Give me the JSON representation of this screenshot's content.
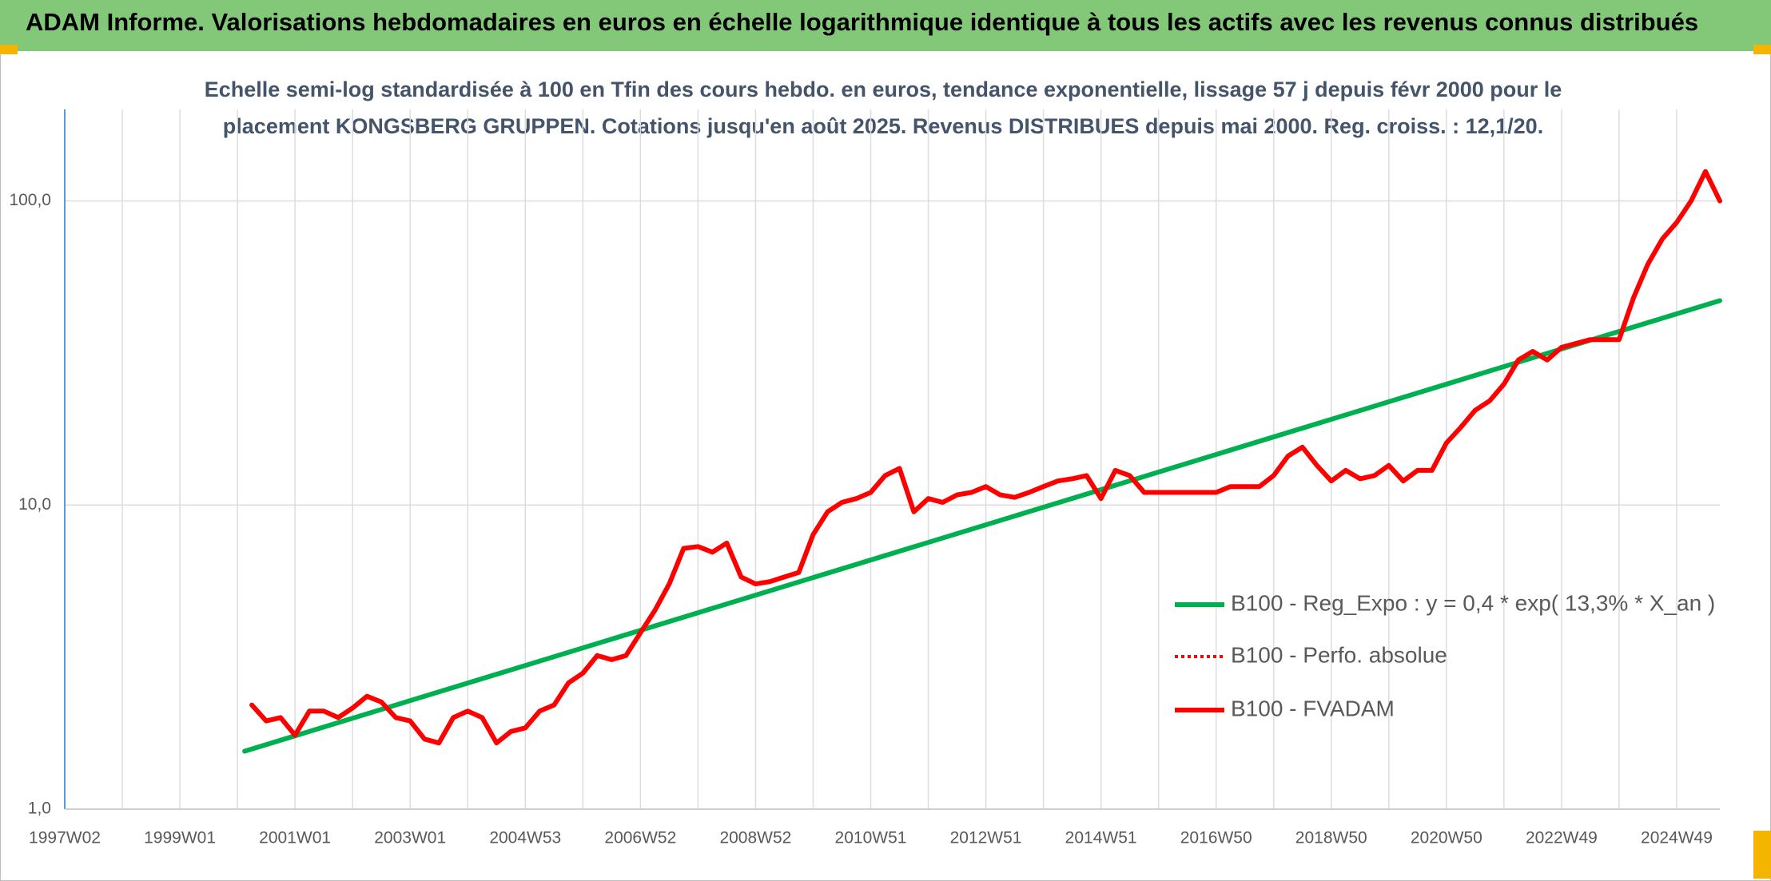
{
  "chart_data": {
    "type": "line",
    "title": "ADAM Informe. Valorisations hebdomadaires en euros en échelle logarithmique identique à tous les actifs avec les revenus connus distribués",
    "subtitle": [
      "Echelle semi-log standardisée à 100 en Tfin des cours hebdo. en euros, tendance exponentielle, lissage 57 j depuis févr 2000 pour le",
      "placement KONGSBERG GRUPPEN. Cotations jusqu'en août 2025. Revenus DISTRIBUES depuis mai 2000. Reg. croiss. : 12,1/20."
    ],
    "categories": [
      "1997W02",
      null,
      null,
      null,
      null,
      null,
      null,
      null,
      "1999W01",
      null,
      null,
      null,
      null,
      null,
      null,
      null,
      "2001W01",
      null,
      null,
      null,
      null,
      null,
      null,
      null,
      "2003W01",
      null,
      null,
      null,
      null,
      null,
      null,
      null,
      "2004W53",
      null,
      null,
      null,
      null,
      null,
      null,
      null,
      "2006W52",
      null,
      null,
      null,
      null,
      null,
      null,
      null,
      "2008W52",
      null,
      null,
      null,
      null,
      null,
      null,
      null,
      "2010W51",
      null,
      null,
      null,
      null,
      null,
      null,
      null,
      "2012W51",
      null,
      null,
      null,
      null,
      null,
      null,
      null,
      "2014W51",
      null,
      null,
      null,
      null,
      null,
      null,
      null,
      "2016W50",
      null,
      null,
      null,
      null,
      null,
      null,
      null,
      "2018W50",
      null,
      null,
      null,
      null,
      null,
      null,
      null,
      "2020W50",
      null,
      null,
      null,
      null,
      null,
      null,
      null,
      "2022W49",
      null,
      null,
      null,
      null,
      null,
      null,
      null,
      "2024W49",
      null,
      null,
      null
    ],
    "log_y": true,
    "ylim": [
      1,
      200
    ],
    "yticks": [
      {
        "value": 1,
        "label": "1,0"
      },
      {
        "value": 10,
        "label": "10,0"
      },
      {
        "value": 100,
        "label": "100,0"
      }
    ],
    "grid": true,
    "legend": "right",
    "series": [
      {
        "name": "B100 - Reg_Expo : y = 0,4 * exp( 13,3% *  X_an )",
        "color": "#00b050",
        "x": [
          12.5,
          115
        ],
        "values": [
          1.55,
          47
        ]
      },
      {
        "name": "B100 - Perfo. absolue",
        "color": "#ff0000",
        "dash": "dotted",
        "values": [
          null,
          null,
          null,
          null,
          null,
          null,
          null,
          null,
          null,
          null,
          null,
          null,
          null,
          2.2,
          1.95,
          2.0,
          1.75,
          2.1,
          2.1,
          2.0,
          2.15,
          2.35,
          2.25,
          2.0,
          1.95,
          1.7,
          1.65,
          2.0,
          2.1,
          2.0,
          1.65,
          1.8,
          1.85,
          2.1,
          2.2,
          2.6,
          2.8,
          3.2,
          3.1,
          3.2,
          3.8,
          4.5,
          5.5,
          7.2,
          7.3,
          7.0,
          7.5,
          5.8,
          5.5,
          5.6,
          5.8,
          6.0,
          8.0,
          9.5,
          10.2,
          10.5,
          11.0,
          12.5,
          13.2,
          9.5,
          10.5,
          10.2,
          10.8,
          11.0,
          11.5,
          10.8,
          10.6,
          11.0,
          11.5,
          12.0,
          12.2,
          12.5,
          10.5,
          13.0,
          12.5,
          11.0,
          11.0,
          11.0,
          11.0,
          11.0,
          11.0,
          11.5,
          11.5,
          11.5,
          12.5,
          14.5,
          15.5,
          13.5,
          12.0,
          13.0,
          12.2,
          12.5,
          13.5,
          12.0,
          13.0,
          13.0,
          16.0,
          18.0,
          20.5,
          22.0,
          25.0,
          30.0,
          32.0,
          30.0,
          33.0,
          34.0,
          35.0,
          35.0,
          35.0,
          48.0,
          62.0,
          75.0,
          85.0,
          100.0,
          125.0,
          100.0
        ]
      },
      {
        "name": "B100 - FVADAM",
        "color": "#ff0000",
        "values": [
          null,
          null,
          null,
          null,
          null,
          null,
          null,
          null,
          null,
          null,
          null,
          null,
          null,
          2.2,
          1.95,
          2.0,
          1.75,
          2.1,
          2.1,
          2.0,
          2.15,
          2.35,
          2.25,
          2.0,
          1.95,
          1.7,
          1.65,
          2.0,
          2.1,
          2.0,
          1.65,
          1.8,
          1.85,
          2.1,
          2.2,
          2.6,
          2.8,
          3.2,
          3.1,
          3.2,
          3.8,
          4.5,
          5.5,
          7.2,
          7.3,
          7.0,
          7.5,
          5.8,
          5.5,
          5.6,
          5.8,
          6.0,
          8.0,
          9.5,
          10.2,
          10.5,
          11.0,
          12.5,
          13.2,
          9.5,
          10.5,
          10.2,
          10.8,
          11.0,
          11.5,
          10.8,
          10.6,
          11.0,
          11.5,
          12.0,
          12.2,
          12.5,
          10.5,
          13.0,
          12.5,
          11.0,
          11.0,
          11.0,
          11.0,
          11.0,
          11.0,
          11.5,
          11.5,
          11.5,
          12.5,
          14.5,
          15.5,
          13.5,
          12.0,
          13.0,
          12.2,
          12.5,
          13.5,
          12.0,
          13.0,
          13.0,
          16.0,
          18.0,
          20.5,
          22.0,
          25.0,
          30.0,
          32.0,
          30.0,
          33.0,
          34.0,
          35.0,
          35.0,
          35.0,
          48.0,
          62.0,
          75.0,
          85.0,
          100.0,
          125.0,
          100.0
        ]
      }
    ]
  }
}
